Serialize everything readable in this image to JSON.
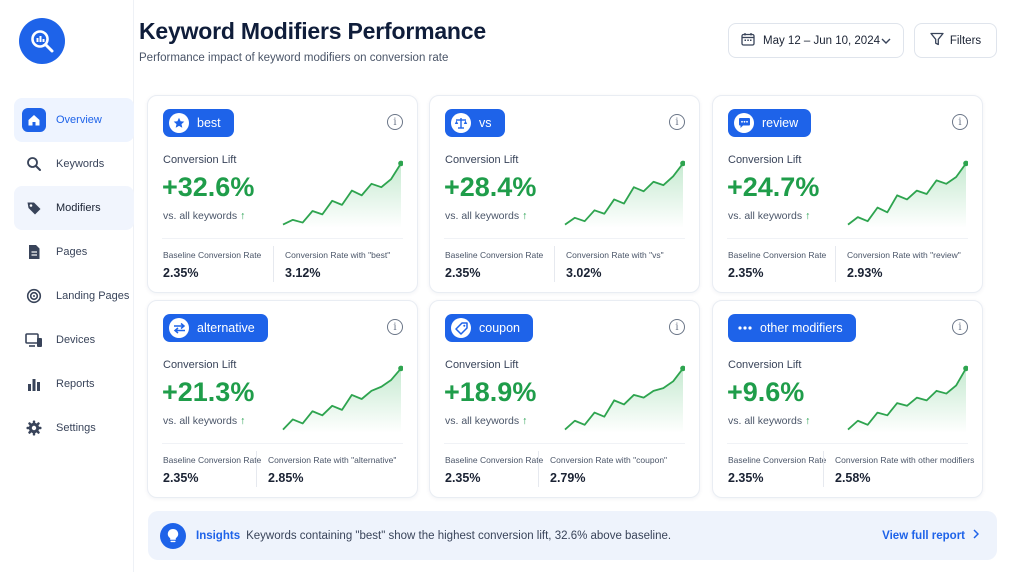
{
  "header": {
    "title": "Keyword Modifiers Performance",
    "subtitle": "Performance impact of keyword modifiers on conversion rate",
    "date_range": "May 12 – Jun 10, 2024",
    "filters_label": "Filters"
  },
  "sidebar": {
    "items": [
      {
        "label": "Overview",
        "icon": "home-icon"
      },
      {
        "label": "Keywords",
        "icon": "search-icon"
      },
      {
        "label": "Modifiers",
        "icon": "tag-icon"
      },
      {
        "label": "Pages",
        "icon": "document-icon"
      },
      {
        "label": "Landing Pages",
        "icon": "target-icon"
      },
      {
        "label": "Devices",
        "icon": "devices-icon"
      },
      {
        "label": "Reports",
        "icon": "bar-chart-icon"
      },
      {
        "label": "Settings",
        "icon": "gear-icon"
      }
    ]
  },
  "cards": [
    {
      "modifier": "best",
      "icon": "star-icon",
      "lift_label": "Conversion Lift",
      "lift": "+32.6%",
      "compare": "vs. all keywords",
      "baseline_label": "Baseline Conversion Rate",
      "baseline": "2.35%",
      "with_label": "Conversion Rate with \"best\"",
      "with_value": "3.12%"
    },
    {
      "modifier": "vs",
      "icon": "scale-icon",
      "lift_label": "Conversion Lift",
      "lift": "+28.4%",
      "compare": "vs. all keywords",
      "baseline_label": "Baseline Conversion Rate",
      "baseline": "2.35%",
      "with_label": "Conversion Rate with \"vs\"",
      "with_value": "3.02%"
    },
    {
      "modifier": "review",
      "icon": "chat-icon",
      "lift_label": "Conversion Lift",
      "lift": "+24.7%",
      "compare": "vs. all keywords",
      "baseline_label": "Baseline Conversion Rate",
      "baseline": "2.35%",
      "with_label": "Conversion Rate with \"review\"",
      "with_value": "2.93%"
    },
    {
      "modifier": "alternative",
      "icon": "swap-icon",
      "lift_label": "Conversion Lift",
      "lift": "+21.3%",
      "compare": "vs. all keywords",
      "baseline_label": "Baseline Conversion Rate",
      "baseline": "2.35%",
      "with_label": "Conversion Rate with \"alternative\"",
      "with_value": "2.85%"
    },
    {
      "modifier": "coupon",
      "icon": "coupon-icon",
      "lift_label": "Conversion Lift",
      "lift": "+18.9%",
      "compare": "vs. all keywords",
      "baseline_label": "Baseline Conversion Rate",
      "baseline": "2.35%",
      "with_label": "Conversion Rate with \"coupon\"",
      "with_value": "2.79%"
    },
    {
      "modifier": "other modifiers",
      "icon": "more-icon",
      "lift_label": "Conversion Lift",
      "lift": "+9.6%",
      "compare": "vs. all keywords",
      "baseline_label": "Baseline Conversion Rate",
      "baseline": "2.35%",
      "with_label": "Conversion Rate with other modifiers",
      "with_value": "2.58%"
    }
  ],
  "insights": {
    "label": "Insights",
    "text": "Keywords containing \"best\" show the highest conversion lift, 32.6% above baseline.",
    "link": "View full report"
  },
  "colors": {
    "accent": "#1e63e9",
    "positive": "#1f9d4a"
  }
}
